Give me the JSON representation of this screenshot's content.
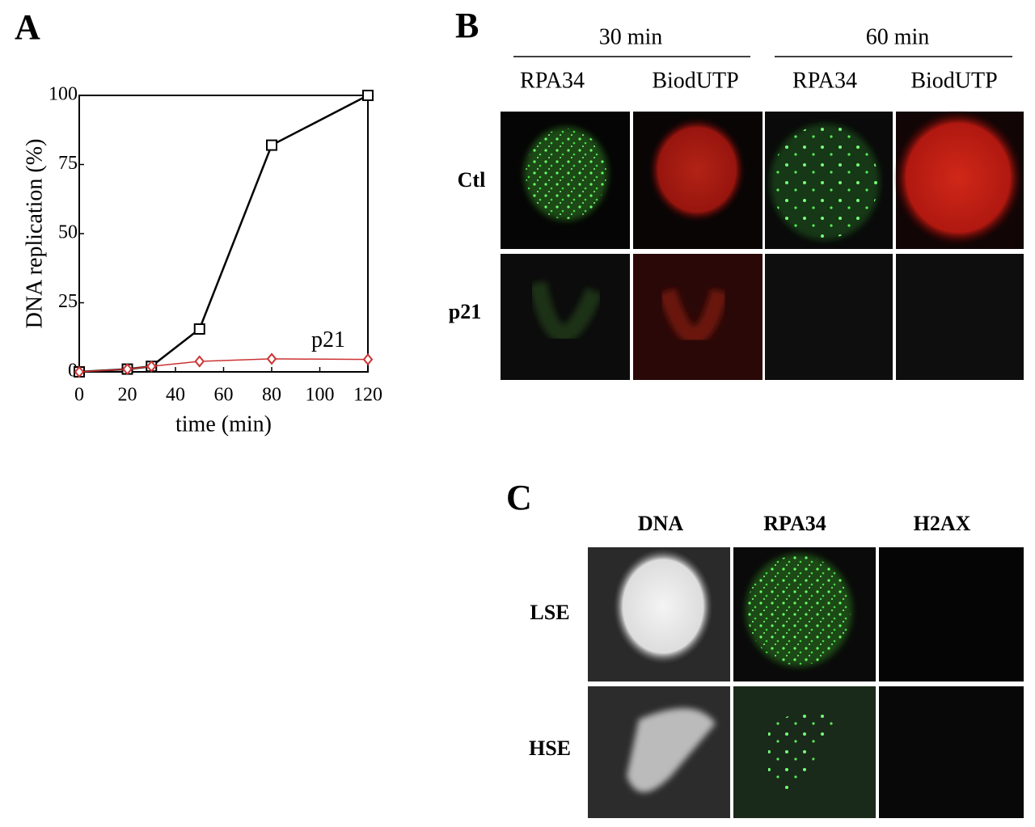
{
  "chart_data": {
    "type": "line",
    "title": "A",
    "xlabel": "time (min)",
    "ylabel": "DNA replication (%)",
    "xlim": [
      0,
      120
    ],
    "xticks": [
      0,
      20,
      40,
      60,
      80,
      100,
      120
    ],
    "ylim": [
      0,
      100
    ],
    "yticks": [
      0,
      25,
      50,
      75,
      100
    ],
    "series": [
      {
        "color": "#000000",
        "marker": "square",
        "x": [
          0,
          20,
          30,
          50,
          80,
          120
        ],
        "values": [
          0,
          1,
          2,
          15.5,
          82,
          100
        ]
      },
      {
        "name": "p21",
        "color": "#cc3333",
        "marker": "diamond",
        "x": [
          0,
          20,
          30,
          50,
          80,
          120
        ],
        "values": [
          0,
          1,
          2,
          3.8,
          4.7,
          4.5
        ]
      }
    ]
  },
  "panel_b": {
    "letter": "B",
    "groups": [
      {
        "label": "30 min",
        "columns": [
          "RPA34",
          "BiodUTP"
        ]
      },
      {
        "label": "60 min",
        "columns": [
          "RPA34",
          "BiodUTP"
        ]
      }
    ],
    "rows": [
      "Ctl",
      "p21"
    ]
  },
  "panel_c": {
    "letter": "C",
    "columns": [
      "DNA",
      "RPA34",
      "H2AX"
    ],
    "rows": [
      "LSE",
      "HSE"
    ]
  }
}
